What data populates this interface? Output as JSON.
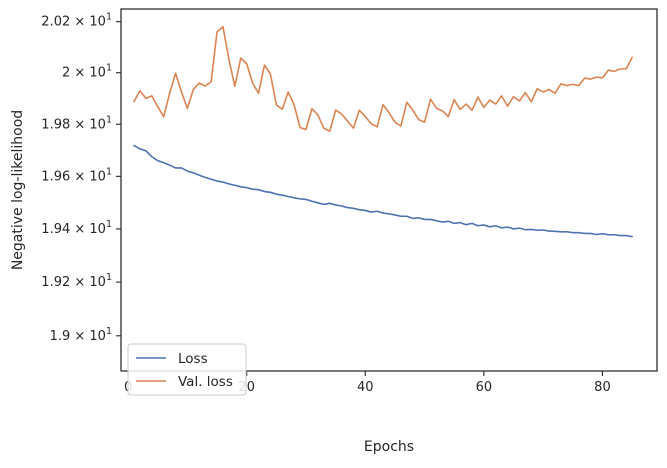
{
  "chart_data": {
    "type": "line",
    "title": "",
    "xlabel": "Epochs",
    "ylabel": "Negative log-likelihood",
    "yscale": "log",
    "xlim": [
      -1.2,
      89.2
    ],
    "ylim": [
      18.87,
      20.25
    ],
    "xticks": [
      0,
      20,
      40,
      60,
      80
    ],
    "xtick_labels": [
      "0",
      "20",
      "40",
      "60",
      "80"
    ],
    "yticks": [
      19.0,
      19.2,
      19.4,
      19.6,
      19.8,
      20.0,
      20.2
    ],
    "ytick_labels": [
      {
        "mantissa": "1.9",
        "exp": "1"
      },
      {
        "mantissa": "1.92",
        "exp": "1"
      },
      {
        "mantissa": "1.94",
        "exp": "1"
      },
      {
        "mantissa": "1.96",
        "exp": "1"
      },
      {
        "mantissa": "1.98",
        "exp": "1"
      },
      {
        "mantissa": "2",
        "exp": "1"
      },
      {
        "mantissa": "2.02",
        "exp": "1"
      }
    ],
    "grid": false,
    "legend": {
      "position": "lower-left"
    },
    "x": [
      1,
      2,
      3,
      4,
      5,
      6,
      7,
      8,
      9,
      10,
      11,
      12,
      13,
      14,
      15,
      16,
      17,
      18,
      19,
      20,
      21,
      22,
      23,
      24,
      25,
      26,
      27,
      28,
      29,
      30,
      31,
      32,
      33,
      34,
      35,
      36,
      37,
      38,
      39,
      40,
      41,
      42,
      43,
      44,
      45,
      46,
      47,
      48,
      49,
      50,
      51,
      52,
      53,
      54,
      55,
      56,
      57,
      58,
      59,
      60,
      61,
      62,
      63,
      64,
      65,
      66,
      67,
      68,
      69,
      70,
      71,
      72,
      73,
      74,
      75,
      76,
      77,
      78,
      79,
      80,
      81,
      82,
      83,
      84,
      85
    ],
    "series": [
      {
        "name": "Loss",
        "color": "#4c72b0",
        "values": [
          19.718,
          19.705,
          19.698,
          19.675,
          19.66,
          19.652,
          19.643,
          19.632,
          19.632,
          19.62,
          19.613,
          19.604,
          19.596,
          19.589,
          19.582,
          19.578,
          19.571,
          19.566,
          19.56,
          19.557,
          19.551,
          19.549,
          19.542,
          19.539,
          19.532,
          19.528,
          19.523,
          19.518,
          19.514,
          19.512,
          19.505,
          19.499,
          19.493,
          19.497,
          19.491,
          19.487,
          19.481,
          19.478,
          19.473,
          19.47,
          19.464,
          19.467,
          19.46,
          19.457,
          19.453,
          19.448,
          19.448,
          19.44,
          19.442,
          19.436,
          19.436,
          19.431,
          19.426,
          19.429,
          19.421,
          19.424,
          19.416,
          19.421,
          19.412,
          19.415,
          19.408,
          19.412,
          19.404,
          19.407,
          19.4,
          19.403,
          19.397,
          19.398,
          19.395,
          19.396,
          19.392,
          19.391,
          19.389,
          19.389,
          19.386,
          19.386,
          19.383,
          19.383,
          19.379,
          19.382,
          19.378,
          19.378,
          19.375,
          19.375,
          19.371
        ]
      },
      {
        "name": "Val. loss",
        "color": "#dd8452",
        "values": [
          19.888,
          19.93,
          19.9,
          19.91,
          19.868,
          19.829,
          19.92,
          19.998,
          19.925,
          19.861,
          19.935,
          19.96,
          19.948,
          19.965,
          20.16,
          20.18,
          20.052,
          19.947,
          20.057,
          20.035,
          19.96,
          19.92,
          20.03,
          19.995,
          19.875,
          19.858,
          19.925,
          19.875,
          19.787,
          19.78,
          19.86,
          19.836,
          19.785,
          19.773,
          19.855,
          19.84,
          19.812,
          19.785,
          19.854,
          19.83,
          19.802,
          19.79,
          19.876,
          19.845,
          19.808,
          19.793,
          19.885,
          19.855,
          19.818,
          19.808,
          19.897,
          19.862,
          19.852,
          19.83,
          19.895,
          19.857,
          19.878,
          19.854,
          19.905,
          19.865,
          19.894,
          19.878,
          19.91,
          19.87,
          19.907,
          19.89,
          19.923,
          19.887,
          19.938,
          19.925,
          19.935,
          19.92,
          19.957,
          19.95,
          19.955,
          19.95,
          19.979,
          19.975,
          19.983,
          19.98,
          20.01,
          20.005,
          20.015,
          20.015,
          20.06
        ]
      }
    ]
  }
}
